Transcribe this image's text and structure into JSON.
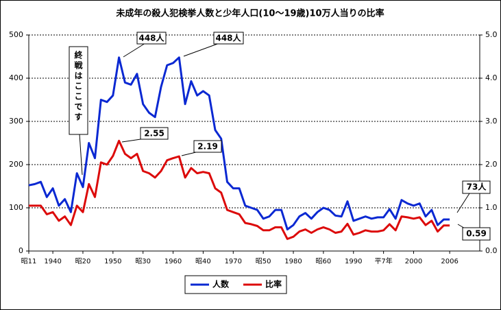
{
  "chart_data": {
    "type": "line",
    "title": "未成年の殺人犯検挙人数と少年人口(10～19歳)10万人当りの比率",
    "x": [
      1936,
      1937,
      1938,
      1939,
      1940,
      1941,
      1942,
      1943,
      1944,
      1945,
      1946,
      1947,
      1948,
      1949,
      1950,
      1951,
      1952,
      1953,
      1954,
      1955,
      1956,
      1957,
      1958,
      1959,
      1960,
      1961,
      1962,
      1963,
      1964,
      1965,
      1966,
      1967,
      1968,
      1969,
      1970,
      1971,
      1972,
      1973,
      1974,
      1975,
      1976,
      1977,
      1978,
      1979,
      1980,
      1981,
      1982,
      1983,
      1984,
      1985,
      1986,
      1987,
      1988,
      1989,
      1990,
      1991,
      1992,
      1993,
      1994,
      1995,
      1996,
      1997,
      1998,
      1999,
      2000,
      2001,
      2002,
      2003,
      2004,
      2005,
      2006
    ],
    "series": [
      {
        "name": "人数",
        "color": "#0a28d2",
        "values": [
          152,
          155,
          160,
          125,
          145,
          105,
          120,
          90,
          180,
          148,
          250,
          215,
          350,
          345,
          360,
          448,
          390,
          385,
          410,
          340,
          320,
          310,
          380,
          430,
          435,
          448,
          340,
          393,
          360,
          370,
          360,
          280,
          260,
          160,
          145,
          145,
          105,
          100,
          95,
          75,
          80,
          95,
          95,
          50,
          60,
          80,
          88,
          75,
          90,
          100,
          95,
          82,
          80,
          115,
          70,
          75,
          80,
          75,
          78,
          78,
          97,
          75,
          118,
          110,
          105,
          110,
          80,
          95,
          60,
          73,
          73
        ]
      },
      {
        "name": "比率",
        "color": "#dc0a0a",
        "axis": "y2",
        "values": [
          1.05,
          1.05,
          1.05,
          0.85,
          0.9,
          0.7,
          0.8,
          0.6,
          1.05,
          0.9,
          1.55,
          1.25,
          2.05,
          2.0,
          2.2,
          2.55,
          2.25,
          2.15,
          2.25,
          1.85,
          1.8,
          1.7,
          1.85,
          2.1,
          2.15,
          2.19,
          1.7,
          1.92,
          1.8,
          1.83,
          1.8,
          1.45,
          1.35,
          0.95,
          0.9,
          0.85,
          0.65,
          0.62,
          0.58,
          0.48,
          0.48,
          0.55,
          0.55,
          0.28,
          0.33,
          0.45,
          0.5,
          0.42,
          0.5,
          0.55,
          0.5,
          0.42,
          0.45,
          0.63,
          0.38,
          0.42,
          0.48,
          0.45,
          0.45,
          0.48,
          0.62,
          0.48,
          0.8,
          0.78,
          0.75,
          0.78,
          0.6,
          0.7,
          0.45,
          0.59,
          0.59
        ]
      }
    ],
    "xlim": [
      1936,
      2011
    ],
    "xticks": [
      {
        "value": 1936,
        "label": "昭11"
      },
      1940,
      {
        "value": 1945,
        "label": "昭20"
      },
      1950,
      {
        "value": 1955,
        "label": "昭30"
      },
      1960,
      {
        "value": 1965,
        "label": "昭40"
      },
      1970,
      {
        "value": 1975,
        "label": "昭50"
      },
      1980,
      {
        "value": 1985,
        "label": "昭60"
      },
      1990,
      {
        "value": 1995,
        "label": "平7年"
      },
      2000,
      2006
    ],
    "ylim": [
      0,
      500
    ],
    "yticks": [
      0,
      100,
      200,
      300,
      400,
      500
    ],
    "y2lim": [
      0,
      5
    ],
    "y2ticks": [
      {
        "value": 0,
        "label": "0.0"
      },
      {
        "value": 1,
        "label": "1.0"
      },
      {
        "value": 2,
        "label": "2.0"
      },
      {
        "value": 3,
        "label": "3.0"
      },
      {
        "value": 4,
        "label": "4.0"
      },
      {
        "value": 5,
        "label": "5.0"
      }
    ],
    "grid": true,
    "legend": "bottom",
    "annotations": [
      "448人",
      "448人",
      "2.55",
      "2.19",
      "73人",
      "0.59",
      "終戦はここです"
    ]
  }
}
